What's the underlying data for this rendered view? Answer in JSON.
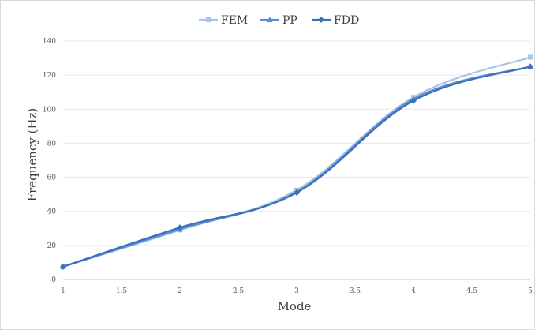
{
  "chart_data": {
    "type": "line",
    "title": "",
    "xlabel": "Mode",
    "ylabel": "Frequency (Hz)",
    "xlim": [
      1,
      5
    ],
    "ylim": [
      0,
      140
    ],
    "xticks": [
      1,
      1.5,
      2,
      2.5,
      3,
      3.5,
      4,
      4.5,
      5
    ],
    "xtick_labels": [
      "1",
      "1.5",
      "2",
      "2.5",
      "3",
      "3.5",
      "4",
      "4.5",
      "5"
    ],
    "yticks": [
      0,
      20,
      40,
      60,
      80,
      100,
      120,
      140
    ],
    "ytick_labels": [
      "0",
      "20",
      "40",
      "60",
      "80",
      "100",
      "120",
      "140"
    ],
    "grid": "horizontal",
    "legend_position": "top",
    "x": [
      1,
      2,
      3,
      4,
      5
    ],
    "series": [
      {
        "name": "FEM",
        "color": "#a9c4e4",
        "marker": "square",
        "values": [
          7.5,
          29,
          52.5,
          107,
          130.5
        ]
      },
      {
        "name": "PP",
        "color": "#5b8fcf",
        "marker": "triangle",
        "values": [
          7.5,
          29.5,
          51.5,
          106,
          125
        ]
      },
      {
        "name": "FDD",
        "color": "#3a70b8",
        "marker": "diamond",
        "values": [
          7.5,
          30.5,
          51,
          105,
          125
        ]
      }
    ]
  }
}
